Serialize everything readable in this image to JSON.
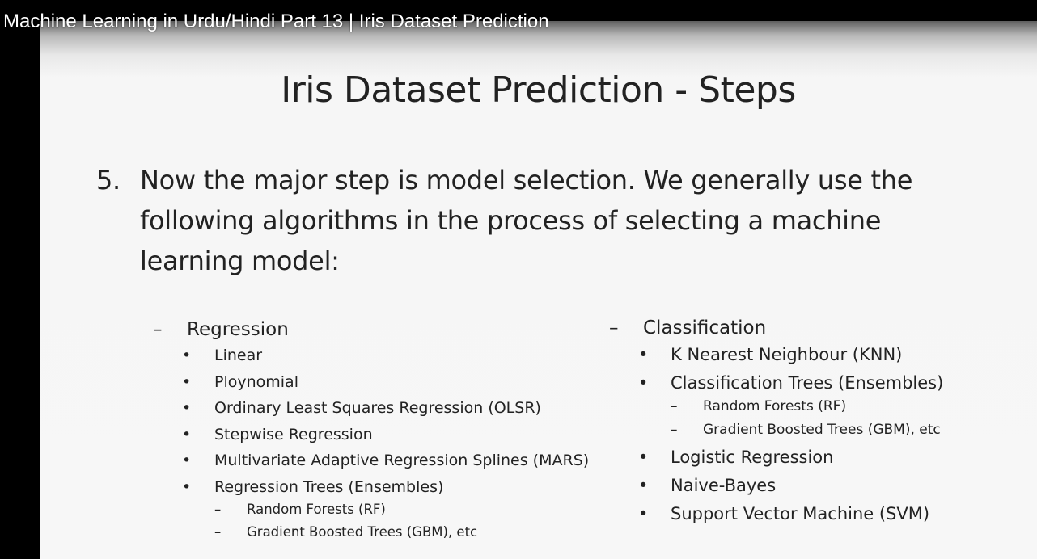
{
  "video": {
    "title": "Machine Learning in Urdu/Hindi Part 13 | Iris Dataset Prediction"
  },
  "slide": {
    "title": "Iris Dataset Prediction - Steps",
    "step_number": "5.",
    "step_lines": [
      "Now the major step is model selection. We generally use the",
      "following algorithms in the process of selecting a machine",
      "learning model:"
    ],
    "dash_glyph": "–",
    "bullet_glyph": "•",
    "regression": {
      "heading": "Regression",
      "items": [
        "Linear",
        "Ploynomial",
        "Ordinary Least Squares Regression (OLSR)",
        "Stepwise Regression",
        "Multivariate Adaptive Regression Splines (MARS)",
        "Regression Trees (Ensembles)"
      ],
      "subitems": [
        "Random Forests (RF)",
        "Gradient Boosted Trees (GBM), etc"
      ]
    },
    "classification": {
      "heading": "Classification",
      "items_top": [
        "K Nearest Neighbour (KNN)",
        "Classification Trees (Ensembles)"
      ],
      "subitems": [
        "Random Forests (RF)",
        "Gradient Boosted Trees (GBM), etc"
      ],
      "items_bottom": [
        "Logistic Regression",
        "Naive-Bayes",
        "Support Vector Machine (SVM)"
      ]
    }
  }
}
